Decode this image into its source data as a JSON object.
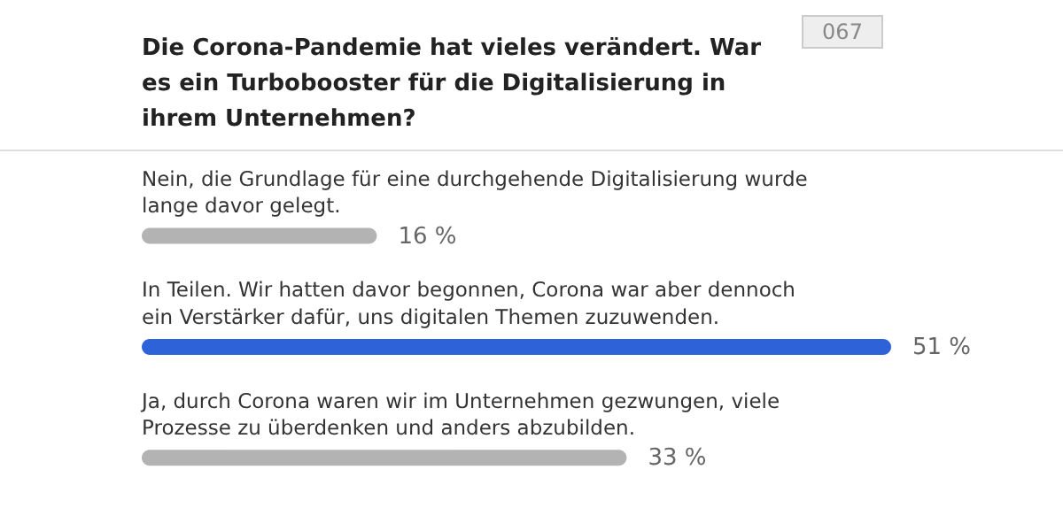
{
  "chart_data": {
    "type": "bar",
    "orientation": "horizontal",
    "title": "Die Corona-Pandemie hat vieles verändert. War es ein Turbobooster für die Digitalisierung in ihrem Unternehmen?",
    "categories": [
      "Nein, die Grundlage für eine durchgehende Digitalisierung wurde lange davor gelegt.",
      "In Teilen. Wir hatten davor begonnen, Corona war aber dennoch ein Verstärker dafür, uns digitalen Themen zuzuwenden.",
      "Ja, durch Corona waren wir im Unternehmen gezwungen, viele Prozesse zu überdenken und anders abzubilden."
    ],
    "values": [
      16,
      51,
      33
    ],
    "colors": [
      "#b3b3b3",
      "#2e62d9",
      "#b3b3b3"
    ],
    "value_labels": [
      "16 %",
      "51 %",
      "33 %"
    ],
    "annotations": [
      "067"
    ],
    "tick_labels": false
  }
}
